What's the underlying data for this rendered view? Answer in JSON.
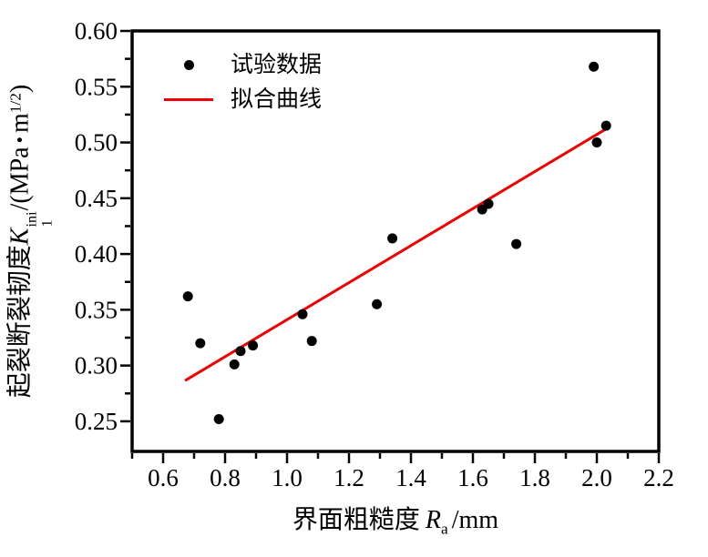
{
  "figure": {
    "background": "#ffffff",
    "text_color": "#000000"
  },
  "legend": {
    "items": [
      {
        "label": "试验数据",
        "marker": "dot",
        "color": "#000000"
      },
      {
        "label": "拟合曲线",
        "marker": "line",
        "color": "#f00000"
      }
    ]
  },
  "axes": {
    "x_title": {
      "prefix": "界面粗糙度",
      "symbol": "R",
      "symbol_sub": "a",
      "suffix": "/mm"
    },
    "y_title": {
      "prefix": "起裂断裂韧度",
      "symbol": "K",
      "symbol_sup": "ini",
      "symbol_sub": "1",
      "unit_open": "/(MPa",
      "dot": "•",
      "unit_m": "m",
      "unit_exp": "1/2",
      "unit_close": ")"
    }
  },
  "chart_data": {
    "type": "scatter",
    "title": "",
    "xlabel": "界面粗糙度 Ra /mm",
    "ylabel": "起裂断裂韧度 K1ini/(MPa·m1/2)",
    "xlim": [
      0.5,
      2.2
    ],
    "ylim": [
      0.223,
      0.6
    ],
    "grid": false,
    "legend_position": "top-left-inside",
    "x_major_ticks": [
      0.6,
      0.8,
      1.0,
      1.2,
      1.4,
      1.6,
      1.8,
      2.0,
      2.2
    ],
    "x_tick_labels": [
      "0.6",
      "0.8",
      "1.0",
      "1.2",
      "1.4",
      "1.6",
      "1.8",
      "2.0",
      "2.2"
    ],
    "x_minor_ticks": [
      0.5,
      0.7,
      0.9,
      1.1,
      1.3,
      1.5,
      1.7,
      1.9,
      2.1
    ],
    "y_major_ticks": [
      0.25,
      0.3,
      0.35,
      0.4,
      0.45,
      0.5,
      0.55,
      0.6
    ],
    "y_tick_labels": [
      "0.25",
      "0.30",
      "0.35",
      "0.40",
      "0.45",
      "0.50",
      "0.55",
      "0.60"
    ],
    "y_minor_ticks": [
      0.275,
      0.325,
      0.375,
      0.425,
      0.475,
      0.525,
      0.575
    ],
    "series": [
      {
        "name": "试验数据",
        "type": "scatter",
        "marker": "circle",
        "color": "#000000",
        "points": [
          [
            0.68,
            0.362
          ],
          [
            0.72,
            0.32
          ],
          [
            0.78,
            0.252
          ],
          [
            0.83,
            0.301
          ],
          [
            0.85,
            0.313
          ],
          [
            0.89,
            0.318
          ],
          [
            1.05,
            0.346
          ],
          [
            1.08,
            0.322
          ],
          [
            1.29,
            0.355
          ],
          [
            1.34,
            0.414
          ],
          [
            1.63,
            0.44
          ],
          [
            1.65,
            0.445
          ],
          [
            1.74,
            0.409
          ],
          [
            1.99,
            0.568
          ],
          [
            2.0,
            0.5
          ],
          [
            2.03,
            0.515
          ]
        ]
      },
      {
        "name": "拟合曲线",
        "type": "line",
        "color": "#f00000",
        "line": {
          "x1": 0.674,
          "y1": 0.287,
          "x2": 2.029,
          "y2": 0.512
        }
      }
    ]
  }
}
